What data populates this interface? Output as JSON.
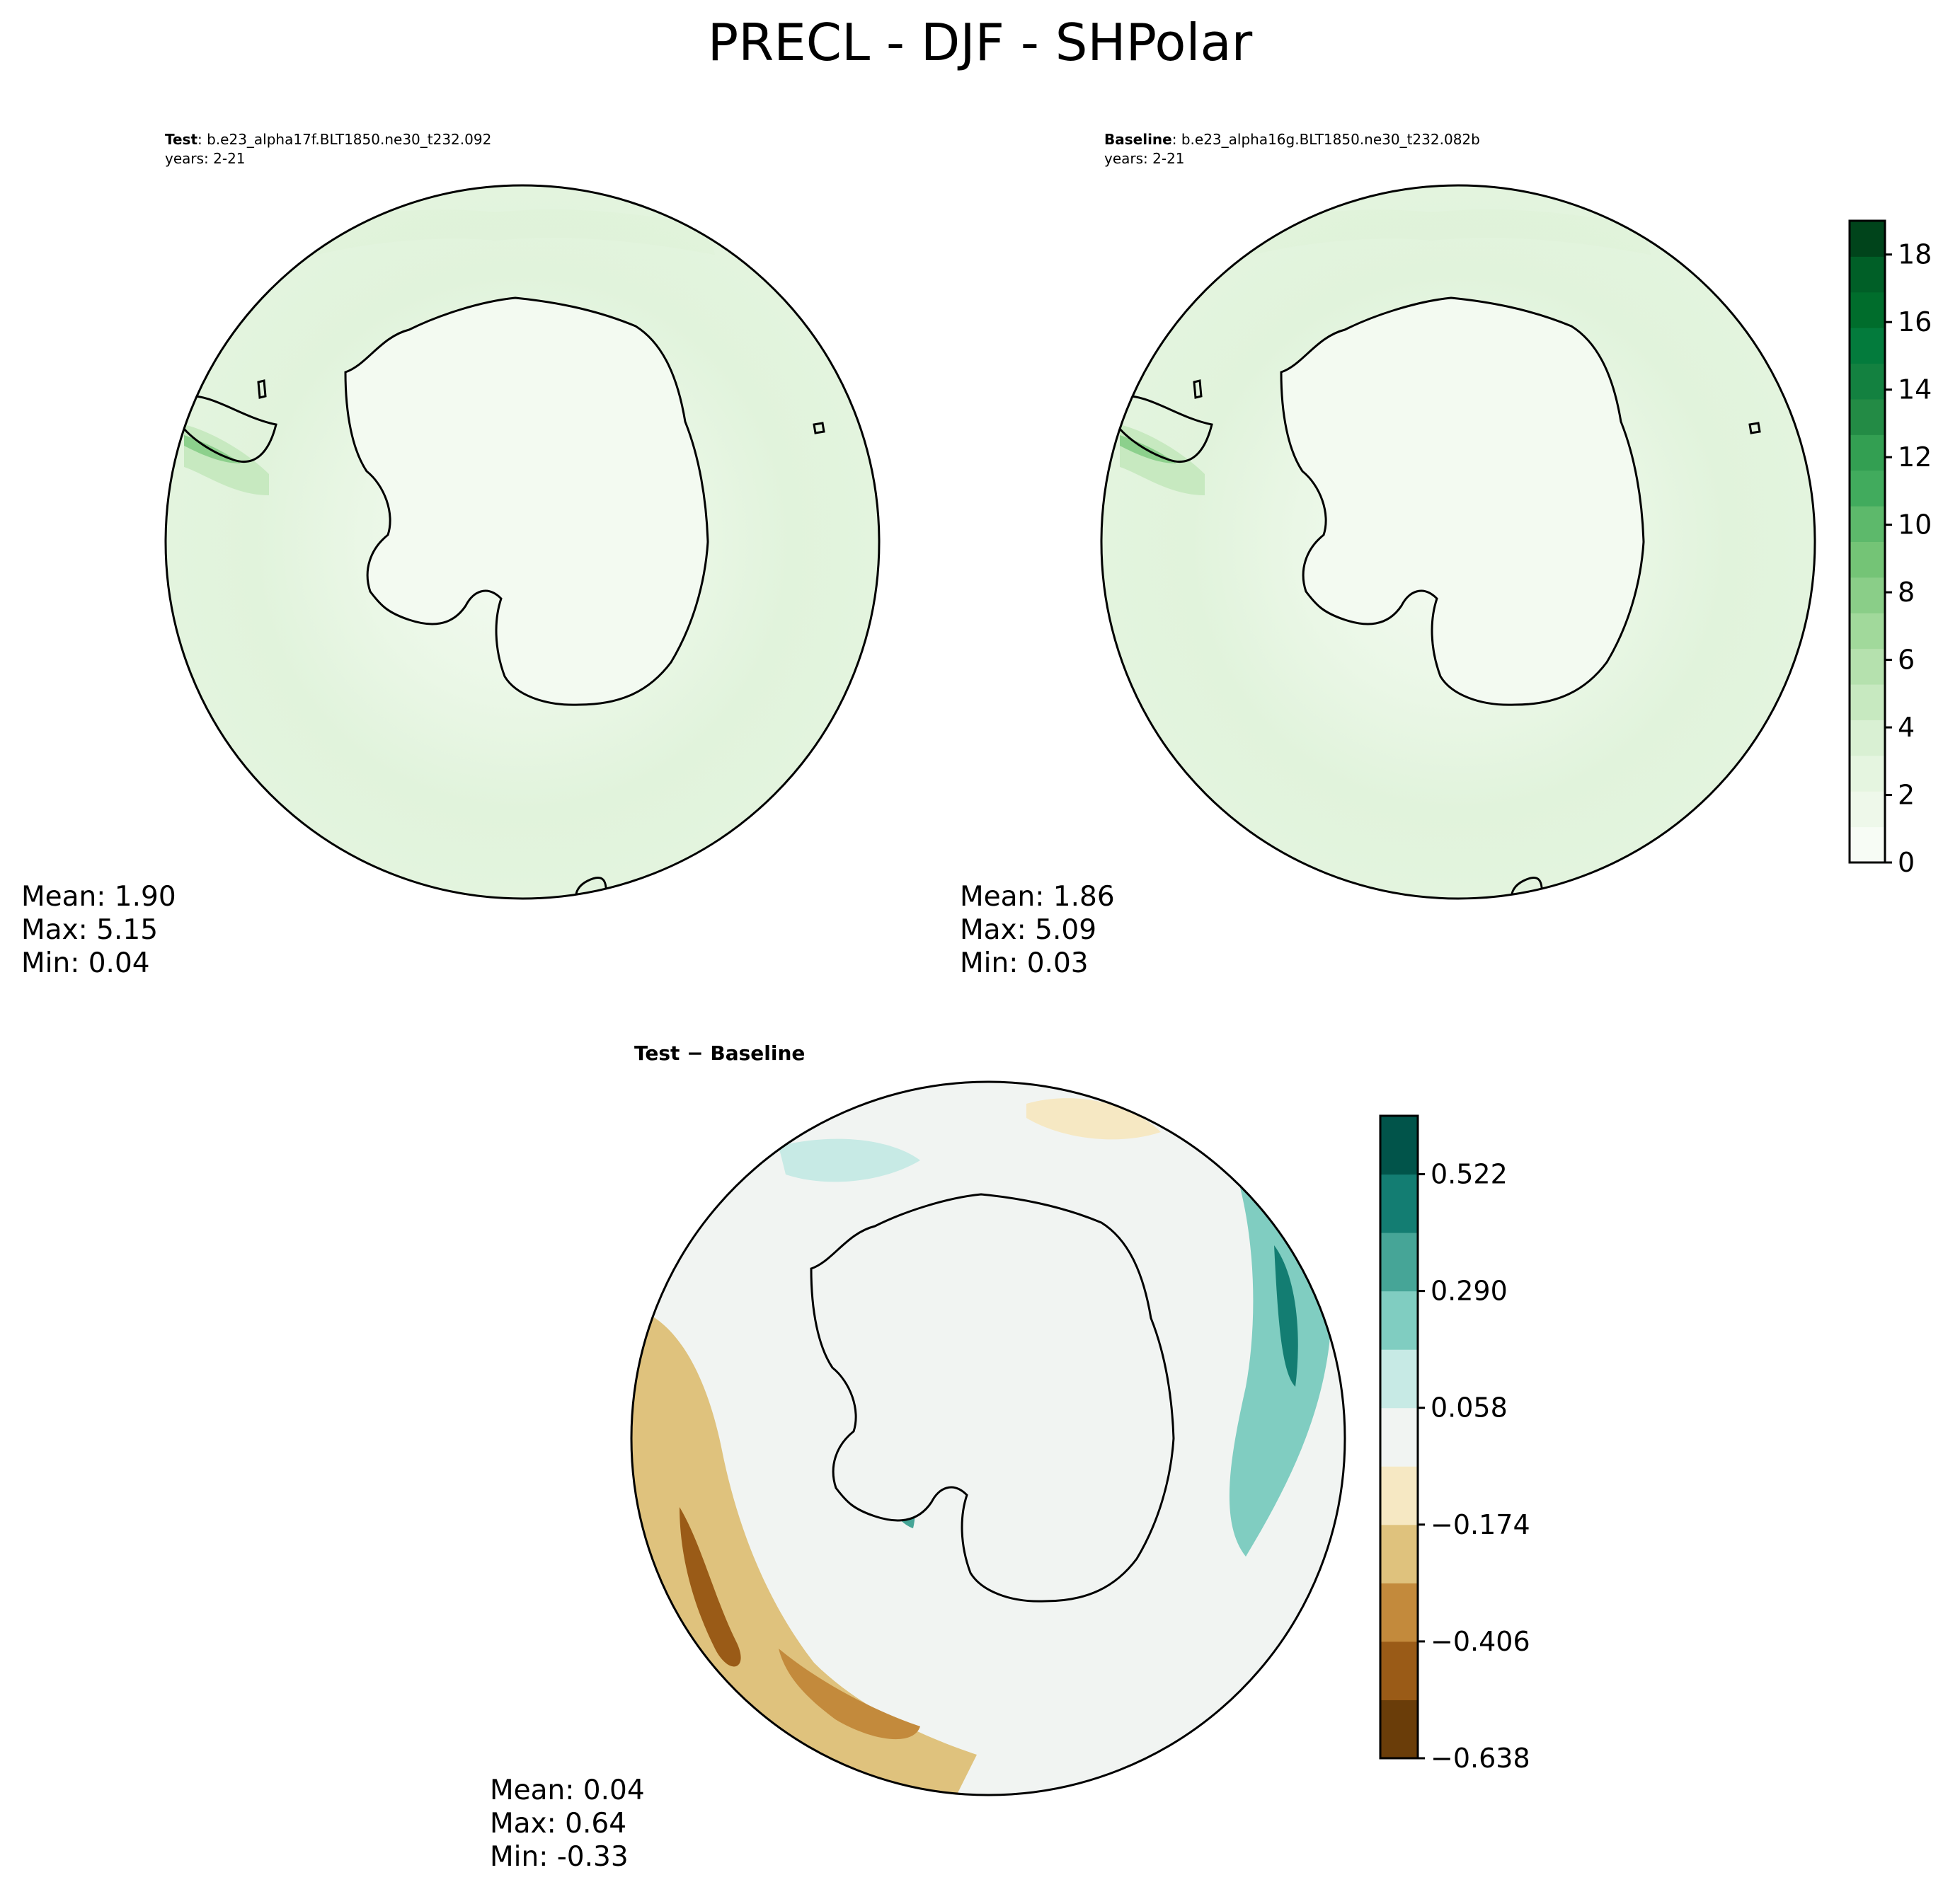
{
  "title": "PRECL - DJF - SHPolar",
  "panels": {
    "test": {
      "label": "Test",
      "case": ": b.e23_alpha17f.BLT1850.ne30_t232.092",
      "years": "years: 2-21",
      "mean": "Mean:  1.90",
      "max": "Max:  5.15",
      "min": "Min:  0.04"
    },
    "baseline": {
      "label": "Baseline",
      "case": ": b.e23_alpha16g.BLT1850.ne30_t232.082b",
      "years": "years: 2-21",
      "mean": "Mean:  1.86",
      "max": "Max:  5.09",
      "min": "Min:  0.03"
    },
    "diff": {
      "label": "Test − Baseline",
      "mean": "Mean:  0.04",
      "max": "Max:  0.64",
      "min": "Min: -0.33"
    }
  },
  "colorbars": {
    "field": {
      "colormap": "Greens",
      "range": [
        0,
        19
      ],
      "ticks": [
        "0",
        "2",
        "4",
        "6",
        "8",
        "10",
        "12",
        "14",
        "16",
        "18"
      ],
      "colors": [
        "#f7fcf5",
        "#eef8ea",
        "#e5f5e0",
        "#d9f0d3",
        "#c7e9c0",
        "#b5e1ae",
        "#a1d99b",
        "#8ace88",
        "#74c476",
        "#5db96b",
        "#41ab5d",
        "#339f52",
        "#238b45",
        "#138140",
        "#037b3c",
        "#006d2c",
        "#005f27",
        "#00441b"
      ]
    },
    "diff": {
      "colormap": "BrBG",
      "range": [
        -0.638,
        0.638
      ],
      "ticks": [
        "−0.638",
        "−0.406",
        "−0.174",
        "0.058",
        "0.290",
        "0.522"
      ],
      "colors": [
        "#6a3d09",
        "#9a5b17",
        "#c38a3c",
        "#dfc27d",
        "#f6e8c3",
        "#f1f4f2",
        "#c7eae5",
        "#80cdc1",
        "#46a597",
        "#137d72",
        "#01544a"
      ]
    }
  }
}
